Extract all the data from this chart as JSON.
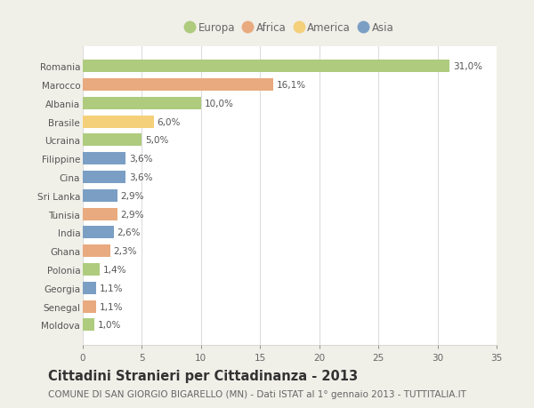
{
  "countries": [
    "Romania",
    "Marocco",
    "Albania",
    "Brasile",
    "Ucraina",
    "Filippine",
    "Cina",
    "Sri Lanka",
    "Tunisia",
    "India",
    "Ghana",
    "Polonia",
    "Georgia",
    "Senegal",
    "Moldova"
  ],
  "values": [
    31.0,
    16.1,
    10.0,
    6.0,
    5.0,
    3.6,
    3.6,
    2.9,
    2.9,
    2.6,
    2.3,
    1.4,
    1.1,
    1.1,
    1.0
  ],
  "labels": [
    "31,0%",
    "16,1%",
    "10,0%",
    "6,0%",
    "5,0%",
    "3,6%",
    "3,6%",
    "2,9%",
    "2,9%",
    "2,6%",
    "2,3%",
    "1,4%",
    "1,1%",
    "1,1%",
    "1,0%"
  ],
  "continents": [
    "Europa",
    "Africa",
    "Europa",
    "America",
    "Europa",
    "Asia",
    "Asia",
    "Asia",
    "Africa",
    "Asia",
    "Africa",
    "Europa",
    "Asia",
    "Africa",
    "Europa"
  ],
  "colors": {
    "Europa": "#aecb7e",
    "Africa": "#e8aa7e",
    "America": "#f5d07a",
    "Asia": "#7b9fc4"
  },
  "legend_order": [
    "Europa",
    "Africa",
    "America",
    "Asia"
  ],
  "xlim": [
    0,
    35
  ],
  "xticks": [
    0,
    5,
    10,
    15,
    20,
    25,
    30,
    35
  ],
  "title": "Cittadini Stranieri per Cittadinanza - 2013",
  "subtitle": "COMUNE DI SAN GIORGIO BIGARELLO (MN) - Dati ISTAT al 1° gennaio 2013 - TUTTITALIA.IT",
  "background_color": "#f0efe8",
  "plot_background": "#ffffff",
  "grid_color": "#dddddd",
  "title_fontsize": 10.5,
  "subtitle_fontsize": 7.5,
  "label_fontsize": 7.5,
  "tick_fontsize": 7.5,
  "legend_fontsize": 8.5,
  "bar_height": 0.68
}
